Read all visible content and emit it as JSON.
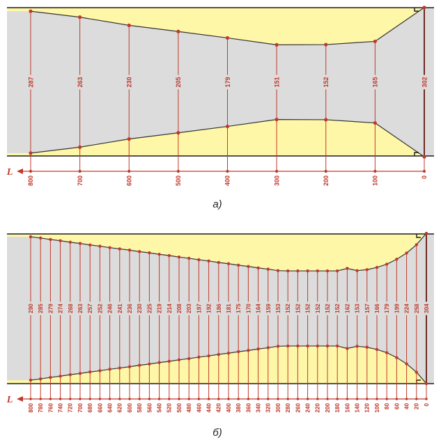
{
  "colors": {
    "background": "#dcdcdc",
    "fill": "#fff7a8",
    "line": "#c0392b",
    "wall": "#1a1a1a"
  },
  "axis_symbol": "L",
  "panel_a": {
    "caption": "a)",
    "positions": [
      800,
      700,
      600,
      500,
      400,
      300,
      200,
      100,
      0
    ],
    "diameters": [
      287,
      263,
      230,
      205,
      179,
      151,
      152,
      165,
      302
    ],
    "axis_labels": [
      "800",
      "700",
      "600",
      "500",
      "400",
      "300",
      "200",
      "100",
      "0"
    ]
  },
  "panel_b": {
    "caption": "б)",
    "positions": [
      800,
      780,
      760,
      740,
      720,
      700,
      680,
      660,
      640,
      620,
      600,
      580,
      560,
      540,
      520,
      500,
      480,
      460,
      440,
      420,
      400,
      380,
      360,
      340,
      320,
      300,
      280,
      260,
      240,
      220,
      200,
      180,
      160,
      140,
      120,
      100,
      80,
      60,
      40,
      20,
      0
    ],
    "diameters": [
      290,
      285,
      279,
      274,
      268,
      263,
      257,
      252,
      246,
      241,
      236,
      230,
      225,
      219,
      214,
      208,
      203,
      197,
      192,
      186,
      181,
      175,
      170,
      164,
      159,
      153,
      152,
      152,
      152,
      152,
      152,
      152,
      162,
      153,
      157,
      166,
      179,
      199,
      224,
      258,
      304
    ],
    "axis_labels": [
      "800",
      "780",
      "760",
      "740",
      "720",
      "700",
      "680",
      "660",
      "640",
      "620",
      "600",
      "580",
      "560",
      "540",
      "520",
      "500",
      "480",
      "460",
      "440",
      "420",
      "400",
      "380",
      "360",
      "340",
      "320",
      "300",
      "280",
      "260",
      "240",
      "220",
      "200",
      "180",
      "160",
      "140",
      "120",
      "100",
      "80",
      "60",
      "40",
      "20",
      "0"
    ]
  }
}
